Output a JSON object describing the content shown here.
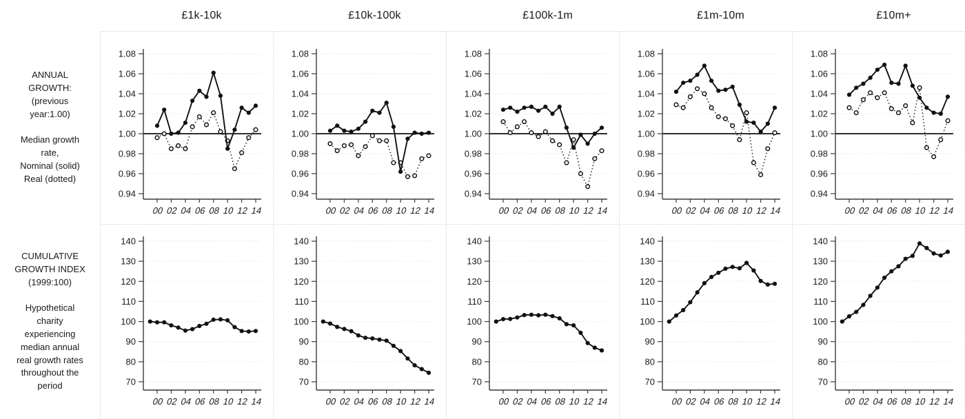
{
  "figure": {
    "row_labels": {
      "annual": "ANNUAL\nGROWTH:\n(previous\nyear:1.00)\n\nMedian growth\nrate,\nNominal (solid)\nReal (dotted)",
      "cumulative": "CUMULATIVE\nGROWTH INDEX\n(1999:100)\n\nHypothetical\ncharity\nexperiencing\nmedian annual\nreal growth rates\nthroughout the\nperiod"
    }
  },
  "chart_data": {
    "type": "line",
    "layout": "small multiples: 5 income-band columns x 2 metric rows, grid on (faint dotted), no legend (styles named in row label)",
    "columns": [
      "£1k-10k",
      "£10k-100k",
      "£100k-1m",
      "£1m-10m",
      "£10m+"
    ],
    "years": [
      "00",
      "01",
      "02",
      "03",
      "04",
      "05",
      "06",
      "07",
      "08",
      "09",
      "10",
      "11",
      "12",
      "13",
      "14"
    ],
    "x_tick_labels": [
      "00",
      "02",
      "04",
      "06",
      "08",
      "10",
      "12",
      "14"
    ],
    "annual_growth": {
      "title": "ANNUAL GROWTH (previous year:1.00) — median growth rate",
      "ylim": [
        0.94,
        1.08
      ],
      "ytick_labels": [
        "0.94",
        "0.96",
        "0.98",
        "1.00",
        "1.02",
        "1.04",
        "1.06",
        "1.08"
      ],
      "reference_line": 1.0,
      "series_styles": {
        "nominal": "solid line, filled markers",
        "real": "dotted line, open markers"
      },
      "panels": [
        {
          "column": "£1k-10k",
          "nominal": [
            1.008,
            1.024,
            1.0,
            1.001,
            1.011,
            1.033,
            1.043,
            1.037,
            1.061,
            1.038,
            0.985,
            1.004,
            1.026,
            1.021,
            1.028
          ],
          "real": [
            0.996,
            1.0,
            0.985,
            0.988,
            0.985,
            1.007,
            1.017,
            1.009,
            1.021,
            1.002,
            0.993,
            0.965,
            0.981,
            0.996,
            1.004
          ]
        },
        {
          "column": "£10k-100k",
          "nominal": [
            1.003,
            1.008,
            1.003,
            1.002,
            1.005,
            1.012,
            1.023,
            1.021,
            1.031,
            1.007,
            0.962,
            0.995,
            1.001,
            1.0,
            1.001
          ],
          "real": [
            0.99,
            0.983,
            0.988,
            0.989,
            0.978,
            0.987,
            0.998,
            0.993,
            0.993,
            0.971,
            0.971,
            0.957,
            0.958,
            0.975,
            0.978
          ]
        },
        {
          "column": "£100k-1m",
          "nominal": [
            1.024,
            1.026,
            1.022,
            1.026,
            1.027,
            1.023,
            1.027,
            1.02,
            1.027,
            1.006,
            0.986,
            0.999,
            0.99,
            1.0,
            1.006
          ],
          "real": [
            1.012,
            1.001,
            1.007,
            1.012,
            1.001,
            0.997,
            1.002,
            0.993,
            0.989,
            0.971,
            0.994,
            0.96,
            0.947,
            0.975,
            0.983
          ]
        },
        {
          "column": "£1m-10m",
          "nominal": [
            1.042,
            1.051,
            1.053,
            1.059,
            1.068,
            1.053,
            1.043,
            1.044,
            1.047,
            1.029,
            1.012,
            1.011,
            1.002,
            1.01,
            1.026
          ],
          "real": [
            1.029,
            1.026,
            1.037,
            1.045,
            1.04,
            1.026,
            1.017,
            1.015,
            1.008,
            0.994,
            1.021,
            0.971,
            0.959,
            0.985,
            1.001
          ]
        },
        {
          "column": "£10m+",
          "nominal": [
            1.039,
            1.046,
            1.05,
            1.056,
            1.064,
            1.069,
            1.051,
            1.05,
            1.068,
            1.048,
            1.036,
            1.026,
            1.021,
            1.02,
            1.037
          ],
          "real": [
            1.026,
            1.021,
            1.034,
            1.041,
            1.036,
            1.041,
            1.025,
            1.021,
            1.028,
            1.011,
            1.046,
            0.986,
            0.977,
            0.994,
            1.013
          ]
        }
      ]
    },
    "cumulative_index": {
      "title": "CUMULATIVE GROWTH INDEX (1999:100) — hypothetical charity experiencing median annual real growth rates",
      "ylim": [
        70,
        140
      ],
      "ytick_labels": [
        "70",
        "80",
        "90",
        "100",
        "110",
        "120",
        "130",
        "140"
      ],
      "start_year": "99",
      "start_value": 100,
      "panels": [
        {
          "column": "£1k-10k",
          "values": [
            100,
            99.6,
            99.6,
            98.1,
            97.0,
            95.5,
            96.2,
            97.8,
            98.9,
            100.9,
            101.1,
            100.6,
            97.2,
            95.3,
            95.0,
            95.3
          ]
        },
        {
          "column": "£10k-100k",
          "values": [
            100,
            99.0,
            97.3,
            96.3,
            95.2,
            93.1,
            91.9,
            91.6,
            91.0,
            90.5,
            87.9,
            85.3,
            81.6,
            78.2,
            76.3,
            74.5
          ]
        },
        {
          "column": "£100k-1m",
          "values": [
            100,
            101.2,
            101.3,
            102.0,
            103.2,
            103.4,
            103.1,
            103.4,
            102.7,
            101.6,
            98.7,
            98.1,
            94.4,
            89.3,
            87.0,
            85.6
          ]
        },
        {
          "column": "£1m-10m",
          "values": [
            100,
            103.0,
            105.7,
            109.6,
            114.5,
            119.1,
            122.2,
            124.3,
            126.3,
            127.2,
            126.5,
            129.2,
            125.4,
            120.2,
            118.4,
            118.8
          ]
        },
        {
          "column": "£10m+",
          "values": [
            100,
            102.6,
            104.8,
            108.3,
            112.8,
            116.9,
            121.8,
            125.0,
            127.5,
            131.2,
            132.7,
            138.9,
            136.6,
            133.9,
            132.9,
            134.7
          ]
        }
      ]
    },
    "colors": {
      "line": "#111111",
      "grid": "#e2e2e2",
      "axis": "#3a3a3a",
      "reference": "#111111",
      "cell_border": "#d4d4d4",
      "background": "#ffffff"
    }
  }
}
